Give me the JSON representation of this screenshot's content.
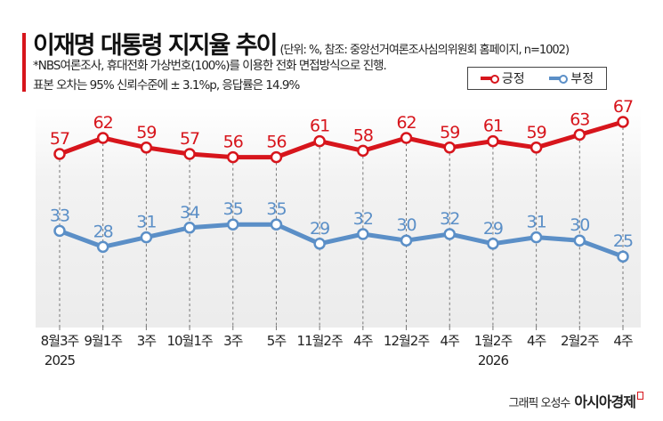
{
  "header": {
    "title": "이재명 대통령 지지율 추이",
    "subtitle": "(단위: %, 참조: 중앙선거여론조사심의위원회 홈페이지, n=1002)",
    "note_line1": "*NBS여론조사, 휴대전화 가상번호(100%)를 이용한 전화 면접방식으로 진행.",
    "note_line2": "표본 오차는 95% 신뢰수준에 ± 3.1%p, 응답률은 14.9%"
  },
  "legend": {
    "positive": "긍정",
    "negative": "부정"
  },
  "colors": {
    "positive": "#d7151c",
    "negative": "#5b8fc7"
  },
  "chart_data": {
    "type": "line",
    "categories": [
      "8월3주\n2025",
      "9월1주",
      "3주",
      "10월1주",
      "3주",
      "5주",
      "11월2주",
      "4주",
      "12월2주",
      "4주",
      "1월2주\n2026",
      "4주",
      "2월2주",
      "4주"
    ],
    "series": [
      {
        "name": "긍정",
        "values": [
          57,
          62,
          59,
          57,
          56,
          56,
          61,
          58,
          62,
          59,
          61,
          59,
          63,
          67
        ]
      },
      {
        "name": "부정",
        "values": [
          33,
          28,
          31,
          34,
          35,
          35,
          29,
          32,
          30,
          32,
          29,
          31,
          30,
          25
        ]
      }
    ],
    "grid": "vertical dashed",
    "legend_position": "top-right"
  },
  "footer": {
    "credit": "그래픽 오성수",
    "brand": "아시아경제"
  }
}
